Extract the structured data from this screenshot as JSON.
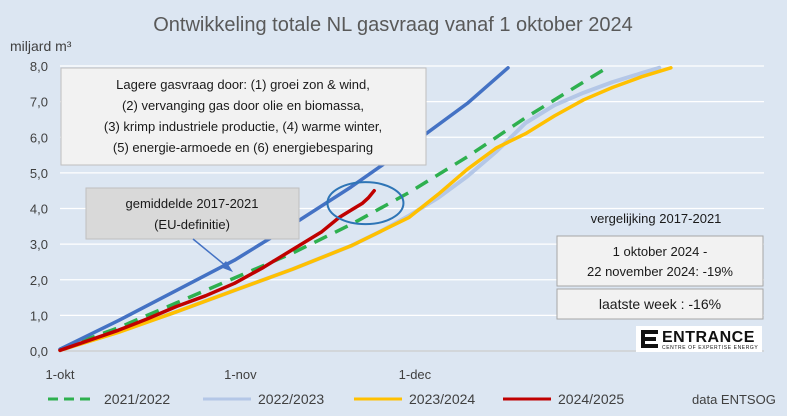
{
  "chart_data": {
    "type": "line",
    "title": "Ontwikkeling totale NL gasvraag vanaf 1 oktober 2024",
    "ylabel": "miljard m³",
    "xlabel": "",
    "ylim": [
      0,
      8
    ],
    "xlim_days": [
      0,
      121
    ],
    "y_ticks": [
      "0,0",
      "1,0",
      "2,0",
      "3,0",
      "4,0",
      "5,0",
      "6,0",
      "7,0",
      "8,0"
    ],
    "x_ticks": [
      {
        "day": 0,
        "label": "1-okt"
      },
      {
        "day": 31,
        "label": "1-nov"
      },
      {
        "day": 61,
        "label": "1-dec"
      }
    ],
    "grid": true,
    "legend_position": "bottom",
    "series": [
      {
        "name": "2021/2022",
        "color": "#2eb04f",
        "style": "dashed",
        "points": [
          [
            0,
            0.05
          ],
          [
            10,
            0.65
          ],
          [
            20,
            1.35
          ],
          [
            30,
            2.05
          ],
          [
            40,
            2.75
          ],
          [
            50,
            3.55
          ],
          [
            60,
            4.45
          ],
          [
            70,
            5.45
          ],
          [
            80,
            6.55
          ],
          [
            90,
            7.55
          ],
          [
            94,
            7.95
          ]
        ]
      },
      {
        "name": "2022/2023",
        "color": "#b4c7e7",
        "style": "solid",
        "points": [
          [
            0,
            0.02
          ],
          [
            10,
            0.55
          ],
          [
            20,
            1.1
          ],
          [
            30,
            1.7
          ],
          [
            40,
            2.3
          ],
          [
            50,
            2.95
          ],
          [
            55,
            3.35
          ],
          [
            60,
            3.8
          ],
          [
            65,
            4.3
          ],
          [
            70,
            4.9
          ],
          [
            75,
            5.6
          ],
          [
            80,
            6.4
          ],
          [
            85,
            6.9
          ],
          [
            90,
            7.25
          ],
          [
            95,
            7.55
          ],
          [
            100,
            7.8
          ],
          [
            103,
            7.95
          ]
        ]
      },
      {
        "name": "2023/2024",
        "color": "#ffc000",
        "style": "solid",
        "points": [
          [
            0,
            0.02
          ],
          [
            10,
            0.52
          ],
          [
            20,
            1.1
          ],
          [
            30,
            1.7
          ],
          [
            40,
            2.3
          ],
          [
            50,
            2.95
          ],
          [
            55,
            3.35
          ],
          [
            60,
            3.75
          ],
          [
            65,
            4.4
          ],
          [
            70,
            5.1
          ],
          [
            75,
            5.7
          ],
          [
            80,
            6.1
          ],
          [
            85,
            6.6
          ],
          [
            90,
            7.05
          ],
          [
            95,
            7.4
          ],
          [
            100,
            7.7
          ],
          [
            105,
            7.95
          ]
        ]
      },
      {
        "name": "2024/2025",
        "color": "#c00000",
        "style": "solid",
        "points": [
          [
            0,
            0.02
          ],
          [
            5,
            0.3
          ],
          [
            10,
            0.58
          ],
          [
            15,
            0.9
          ],
          [
            20,
            1.25
          ],
          [
            25,
            1.55
          ],
          [
            30,
            1.9
          ],
          [
            35,
            2.35
          ],
          [
            40,
            2.85
          ],
          [
            45,
            3.35
          ],
          [
            48,
            3.75
          ],
          [
            50,
            3.95
          ],
          [
            52,
            4.15
          ],
          [
            53,
            4.3
          ],
          [
            54,
            4.5
          ]
        ]
      },
      {
        "name": "gemiddelde 2017-2021 (EU-definitie)",
        "color": "#4472c4",
        "style": "solid",
        "points": [
          [
            0,
            0.05
          ],
          [
            10,
            0.85
          ],
          [
            20,
            1.7
          ],
          [
            30,
            2.55
          ],
          [
            40,
            3.55
          ],
          [
            50,
            4.6
          ],
          [
            60,
            5.75
          ],
          [
            70,
            6.95
          ],
          [
            77,
            7.95
          ]
        ]
      }
    ],
    "annotations": {
      "reasons": [
        "Lagere gasvraag door: (1) groei zon & wind,",
        "(2) vervanging gas door olie en biomassa,",
        "(3) krimp industriele productie, (4) warme winter,",
        "(5) energie-armoede en (6) energiebesparing"
      ],
      "average_label": [
        "gemiddelde 2017-2021",
        "(EU-definitie)"
      ],
      "comparison_title": "vergelijking 2017-2021",
      "comparison_period": [
        "1 oktober 2024 -",
        "22 november 2024: -19%"
      ],
      "last_week": "laatste week : -16%",
      "highlight_ellipse": {
        "day": 52.5,
        "value": 4.15
      }
    },
    "legend": [
      "2021/2022",
      "2022/2023",
      "2023/2024",
      "2024/2025"
    ],
    "source": "data ENTSOG"
  },
  "logo": {
    "name": "ENTRANCE",
    "tagline": "CENTRE OF EXPERTISE ENERGY"
  }
}
